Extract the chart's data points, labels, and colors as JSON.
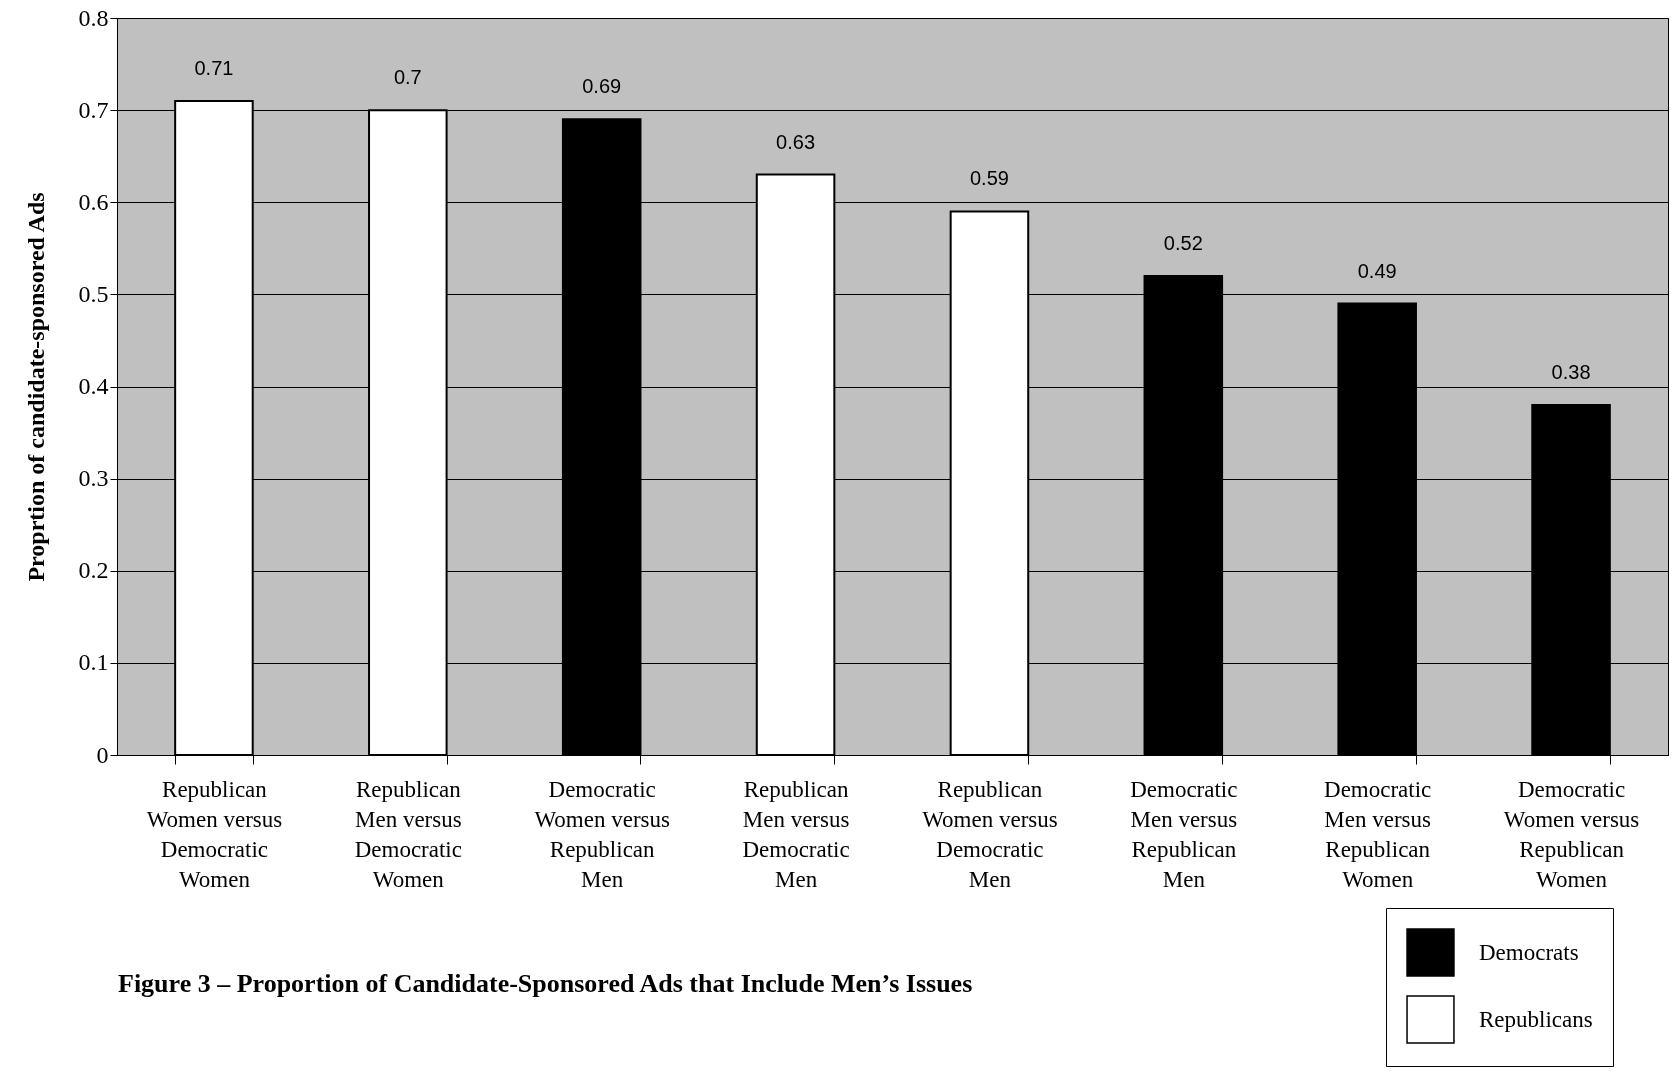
{
  "chart_data": {
    "type": "bar",
    "title": "Figure 3 – Proportion of Candidate-Sponsored Ads that Include Men’s Issues",
    "ylabel": "Proprtion of candidate-sponsored Ads",
    "categories": [
      "Republican Women versus Democratic Women",
      "Republican Men versus Democratic Women",
      "Democratic Women versus Republican Men",
      "Republican Men versus Democratic Men",
      "Republican Women versus Democratic Men",
      "Democratic Men versus Republican Men",
      "Democratic Men versus Republican Women",
      "Democratic Women versus Republican Women"
    ],
    "series": [
      {
        "name": "Democrats",
        "color": "#000000",
        "values": [
          null,
          null,
          0.69,
          null,
          null,
          0.52,
          0.49,
          0.38
        ]
      },
      {
        "name": "Republicans",
        "color": "#ffffff",
        "values": [
          0.71,
          0.7,
          null,
          0.63,
          0.59,
          null,
          null,
          null
        ]
      }
    ],
    "ylim": [
      0,
      0.8
    ],
    "yticks": [
      0,
      0.1,
      0.2,
      0.3,
      0.4,
      0.5,
      0.6,
      0.7,
      0.8
    ],
    "grid": "y",
    "legend": "bottom right",
    "data_labels": true
  }
}
